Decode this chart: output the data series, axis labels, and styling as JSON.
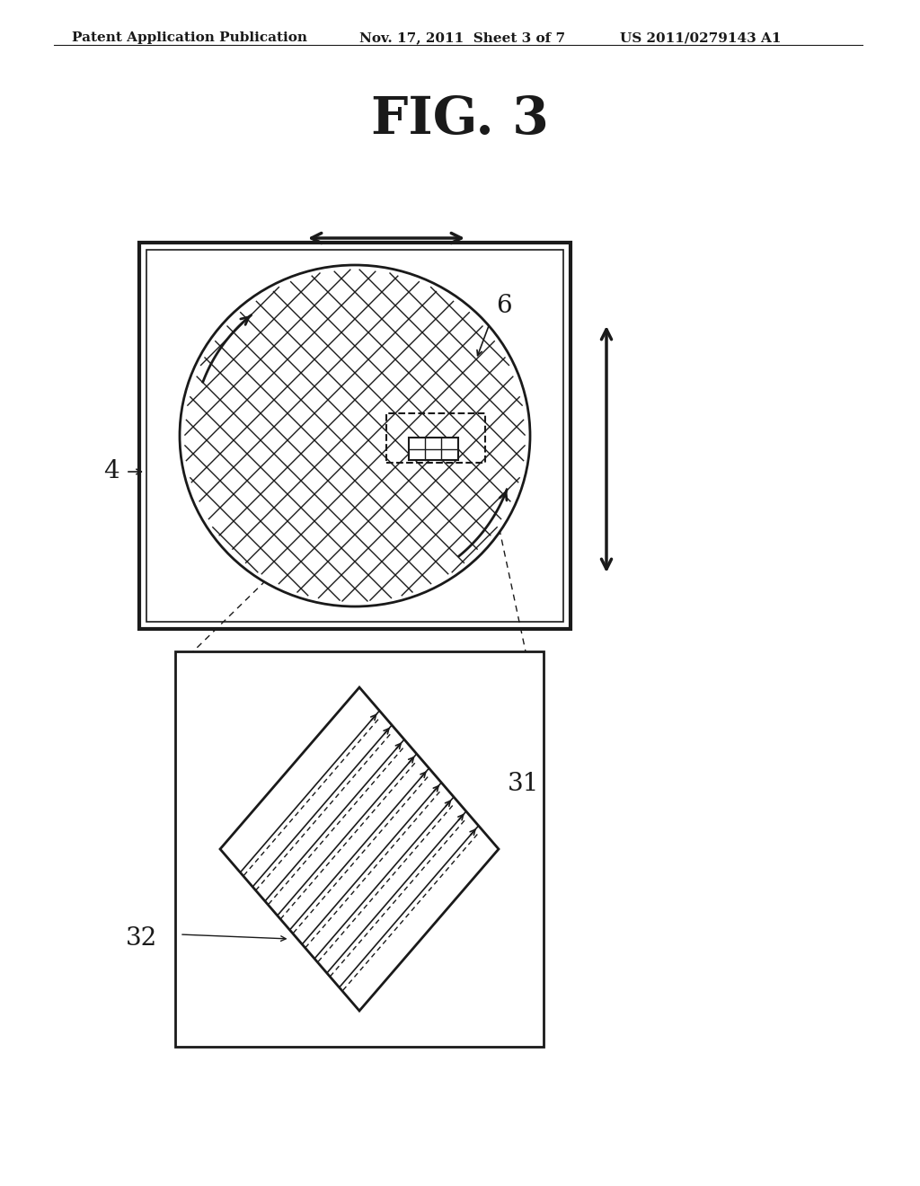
{
  "title": "FIG. 3",
  "header_left": "Patent Application Publication",
  "header_mid": "Nov. 17, 2011  Sheet 3 of 7",
  "header_right": "US 2011/0279143 A1",
  "bg_color": "#ffffff",
  "line_color": "#1a1a1a",
  "label_6": "6",
  "label_4": "4",
  "label_31": "31",
  "label_32": "32"
}
